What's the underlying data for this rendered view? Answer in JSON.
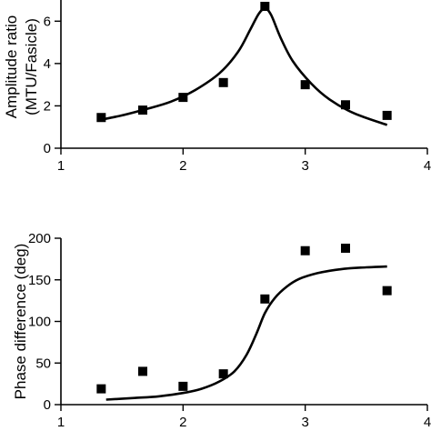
{
  "chart_data": [
    {
      "type": "scatter",
      "title": "",
      "xlabel": "",
      "ylabel": [
        "Amplitude ratio",
        "(MTU/Fasicle)"
      ],
      "xlim": [
        1,
        4
      ],
      "ylim": [
        0,
        7
      ],
      "xticks": [
        1,
        2,
        3,
        4
      ],
      "yticks": [
        0,
        2,
        4,
        6
      ],
      "grid": false,
      "series": [
        {
          "kind": "points",
          "marker": "square",
          "x": [
            1.33,
            1.67,
            2.0,
            2.33,
            2.67,
            3.0,
            3.33,
            3.67
          ],
          "y": [
            1.45,
            1.8,
            2.4,
            3.1,
            6.7,
            3.0,
            2.05,
            1.55
          ]
        },
        {
          "kind": "fit-line",
          "x": [
            1.33,
            1.5,
            1.7,
            1.9,
            2.1,
            2.3,
            2.45,
            2.55,
            2.62,
            2.67,
            2.72,
            2.8,
            2.9,
            3.05,
            3.2,
            3.4,
            3.67
          ],
          "y": [
            1.35,
            1.55,
            1.85,
            2.2,
            2.75,
            3.55,
            4.55,
            5.6,
            6.35,
            6.6,
            6.3,
            5.2,
            4.1,
            3.05,
            2.3,
            1.65,
            1.1
          ]
        }
      ]
    },
    {
      "type": "scatter",
      "title": "",
      "xlabel": "",
      "ylabel": "Phase difference (deg)",
      "xlim": [
        1,
        4
      ],
      "ylim": [
        0,
        200
      ],
      "xticks": [
        1,
        2,
        3,
        4
      ],
      "yticks": [
        0,
        50,
        100,
        150,
        200
      ],
      "grid": false,
      "series": [
        {
          "kind": "points",
          "marker": "square",
          "x": [
            1.33,
            1.67,
            2.0,
            2.33,
            2.67,
            3.0,
            3.33,
            3.67
          ],
          "y": [
            19,
            40,
            22,
            37,
            127,
            185,
            188,
            137
          ]
        },
        {
          "kind": "fit-line",
          "x": [
            1.37,
            1.6,
            1.8,
            2.0,
            2.15,
            2.3,
            2.42,
            2.52,
            2.6,
            2.67,
            2.75,
            2.85,
            2.95,
            3.1,
            3.3,
            3.5,
            3.67
          ],
          "y": [
            6,
            8,
            10,
            14,
            19,
            28,
            40,
            60,
            85,
            110,
            128,
            142,
            151,
            158,
            163,
            165,
            166
          ]
        }
      ]
    }
  ]
}
